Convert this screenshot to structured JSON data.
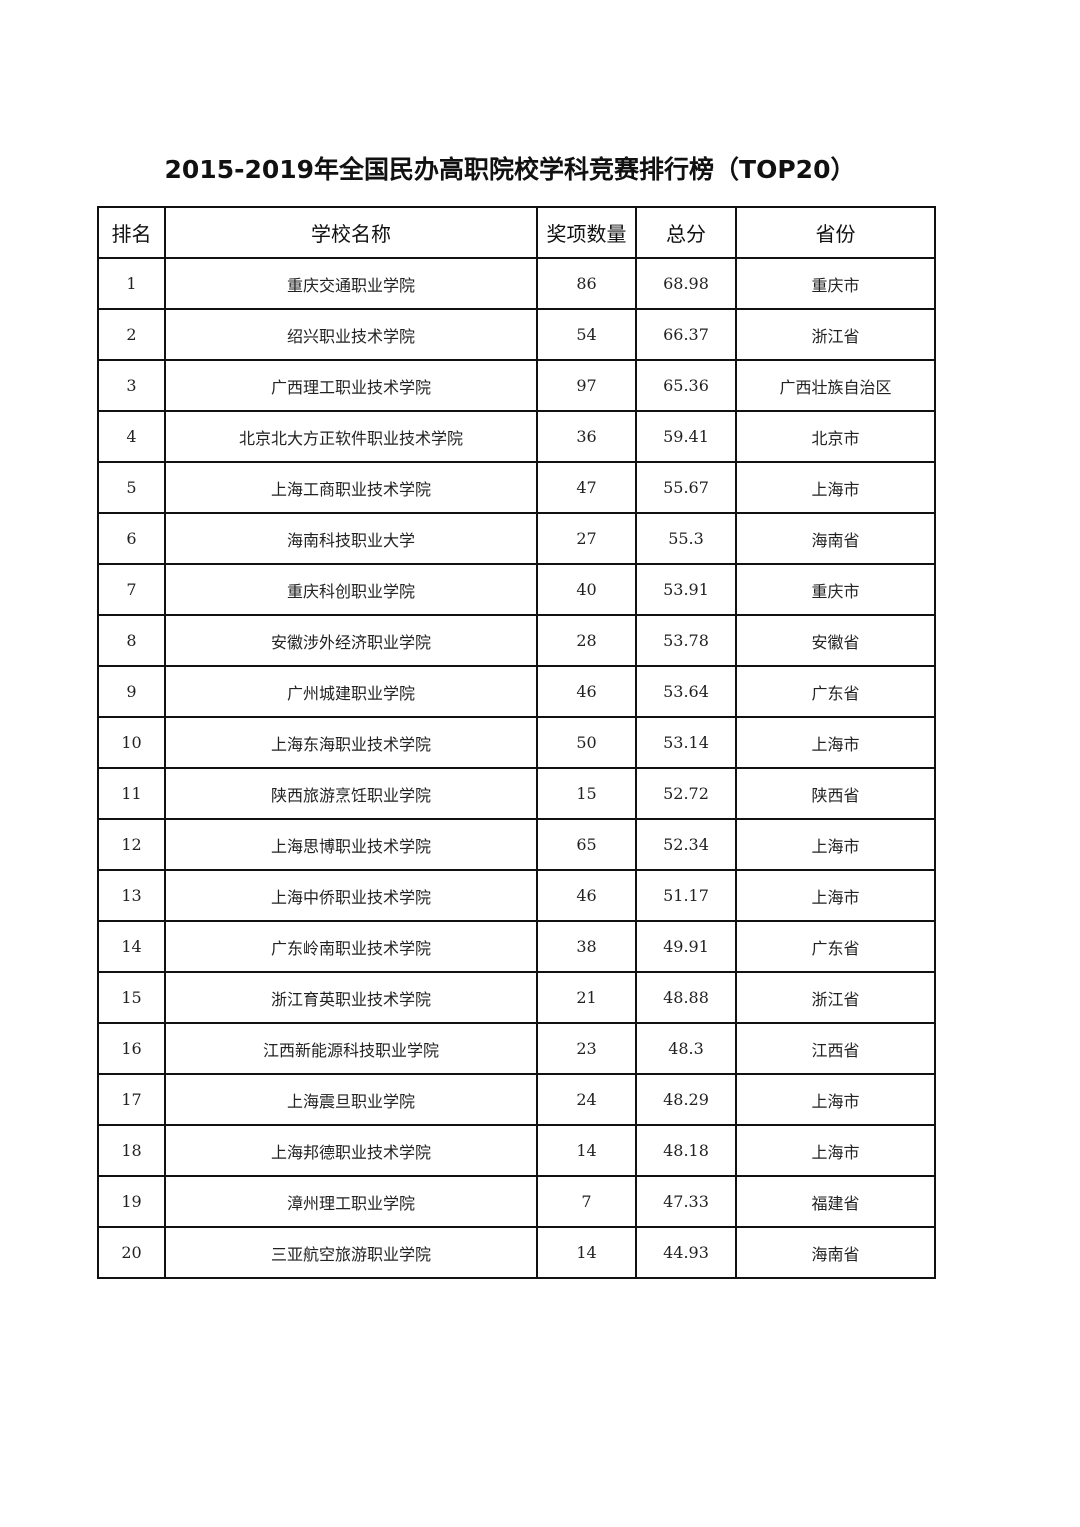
{
  "title": "2015-2019年全国民办高职院校学科竞赛排行榜（TOP20）",
  "headers": [
    "排名",
    "学校名称",
    "奖项数量",
    "总分",
    "省份"
  ],
  "rows": [
    [
      "1",
      "重庆交通职业学院",
      "86",
      "68.98",
      "重庆市"
    ],
    [
      "2",
      "绍兴职业技术学院",
      "54",
      "66.37",
      "浙江省"
    ],
    [
      "3",
      "广西理工职业技术学院",
      "97",
      "65.36",
      "广西壮族自治区"
    ],
    [
      "4",
      "北京北大方正软件职业技术学院",
      "36",
      "59.41",
      "北京市"
    ],
    [
      "5",
      "上海工商职业技术学院",
      "47",
      "55.67",
      "上海市"
    ],
    [
      "6",
      "海南科技职业大学",
      "27",
      "55.3",
      "海南省"
    ],
    [
      "7",
      "重庆科创职业学院",
      "40",
      "53.91",
      "重庆市"
    ],
    [
      "8",
      "安徽涉外经济职业学院",
      "28",
      "53.78",
      "安徽省"
    ],
    [
      "9",
      "广州城建职业学院",
      "46",
      "53.64",
      "广东省"
    ],
    [
      "10",
      "上海东海职业技术学院",
      "50",
      "53.14",
      "上海市"
    ],
    [
      "11",
      "陕西旅游烹饪职业学院",
      "15",
      "52.72",
      "陕西省"
    ],
    [
      "12",
      "上海思博职业技术学院",
      "65",
      "52.34",
      "上海市"
    ],
    [
      "13",
      "上海中侨职业技术学院",
      "46",
      "51.17",
      "上海市"
    ],
    [
      "14",
      "广东岭南职业技术学院",
      "38",
      "49.91",
      "广东省"
    ],
    [
      "15",
      "浙江育英职业技术学院",
      "21",
      "48.88",
      "浙江省"
    ],
    [
      "16",
      "江西新能源科技职业学院",
      "23",
      "48.3",
      "江西省"
    ],
    [
      "17",
      "上海震旦职业学院",
      "24",
      "48.29",
      "上海市"
    ],
    [
      "18",
      "上海邦德职业技术学院",
      "14",
      "48.18",
      "上海市"
    ],
    [
      "19",
      "漳州理工职业学院",
      "7",
      "47.33",
      "福建省"
    ],
    [
      "20",
      "三亚航空旅游职业学院",
      "14",
      "44.93",
      "海南省"
    ]
  ]
}
